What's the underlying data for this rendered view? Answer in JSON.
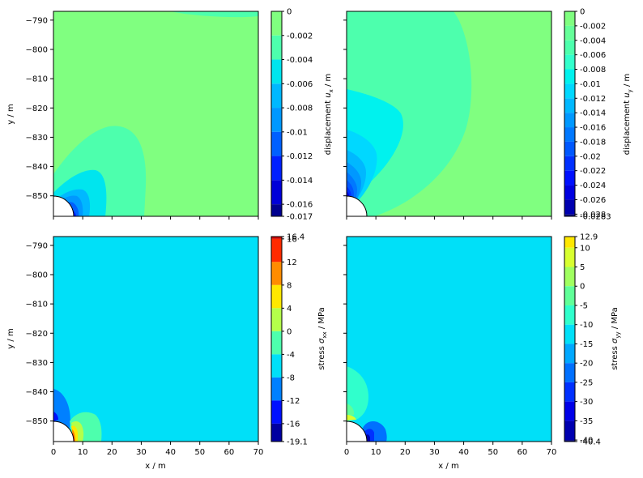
{
  "chart_data": [
    {
      "type": "contour",
      "panel": "top-left",
      "xlabel": "",
      "ylabel": "y / m",
      "xlim": [
        0,
        70
      ],
      "ylim": [
        -857,
        -787
      ],
      "x_ticks": [
        "0",
        "10",
        "20",
        "30",
        "40",
        "50",
        "60",
        "70"
      ],
      "y_ticks": [
        "−790",
        "−800",
        "−810",
        "−820",
        "−830",
        "−840",
        "−850"
      ],
      "y_tick_values": [
        -790,
        -800,
        -810,
        -820,
        -830,
        -840,
        -850
      ],
      "show_x_tick_labels": false,
      "show_y_tick_labels": true,
      "colorbar": {
        "label_text": "displacement ",
        "label_symbol": "u",
        "label_sub": "x",
        "label_unit": " / m",
        "min": -0.017,
        "max": 0,
        "ticks": [
          "0",
          "-0.002",
          "-0.004",
          "-0.006",
          "-0.008",
          "-0.01",
          "-0.012",
          "-0.014",
          "-0.016",
          "-0.017"
        ],
        "tick_values": [
          0,
          -0.002,
          -0.004,
          -0.006,
          -0.008,
          -0.01,
          -0.012,
          -0.014,
          -0.016,
          -0.017
        ],
        "levels": [
          {
            "from": -0.002,
            "to": 0,
            "color": "#80ff80"
          },
          {
            "from": -0.004,
            "to": -0.002,
            "color": "#4dffad"
          },
          {
            "from": -0.006,
            "to": -0.004,
            "color": "#00e5ee"
          },
          {
            "from": -0.008,
            "to": -0.006,
            "color": "#00b8ff"
          },
          {
            "from": -0.01,
            "to": -0.008,
            "color": "#0098ff"
          },
          {
            "from": -0.012,
            "to": -0.01,
            "color": "#0060ff"
          },
          {
            "from": -0.014,
            "to": -0.012,
            "color": "#0020ff"
          },
          {
            "from": -0.016,
            "to": -0.014,
            "color": "#0000d8"
          },
          {
            "from": -0.017,
            "to": -0.016,
            "color": "#00008f"
          }
        ]
      }
    },
    {
      "type": "contour",
      "panel": "top-right",
      "xlabel": "",
      "ylabel": "",
      "xlim": [
        0,
        70
      ],
      "ylim": [
        -857,
        -787
      ],
      "x_ticks": [
        "0",
        "10",
        "20",
        "30",
        "40",
        "50",
        "60",
        "70"
      ],
      "y_ticks": [],
      "y_tick_values": [
        -790,
        -800,
        -810,
        -820,
        -830,
        -840,
        -850
      ],
      "show_x_tick_labels": false,
      "show_y_tick_labels": false,
      "colorbar": {
        "label_text": "displacement ",
        "label_symbol": "u",
        "label_sub": "y",
        "label_unit": " / m",
        "min": -0.0283,
        "max": 0,
        "ticks": [
          "0",
          "-0.002",
          "-0.004",
          "-0.006",
          "-0.008",
          "-0.01",
          "-0.012",
          "-0.014",
          "-0.016",
          "-0.018",
          "-0.02",
          "-0.022",
          "-0.024",
          "-0.026",
          "-0.028",
          "-0.0283"
        ],
        "tick_values": [
          0,
          -0.002,
          -0.004,
          -0.006,
          -0.008,
          -0.01,
          -0.012,
          -0.014,
          -0.016,
          -0.018,
          -0.02,
          -0.022,
          -0.024,
          -0.026,
          -0.028,
          -0.0283
        ],
        "levels": [
          {
            "from": -0.002,
            "to": 0,
            "color": "#80ff80"
          },
          {
            "from": -0.004,
            "to": -0.002,
            "color": "#66ff99"
          },
          {
            "from": -0.006,
            "to": -0.004,
            "color": "#4dffad"
          },
          {
            "from": -0.008,
            "to": -0.006,
            "color": "#33ffcc"
          },
          {
            "from": -0.01,
            "to": -0.008,
            "color": "#00f2ee"
          },
          {
            "from": -0.012,
            "to": -0.01,
            "color": "#00d8ff"
          },
          {
            "from": -0.014,
            "to": -0.012,
            "color": "#00b8ff"
          },
          {
            "from": -0.016,
            "to": -0.014,
            "color": "#0098ff"
          },
          {
            "from": -0.018,
            "to": -0.016,
            "color": "#0078ff"
          },
          {
            "from": -0.02,
            "to": -0.018,
            "color": "#0058ff"
          },
          {
            "from": -0.022,
            "to": -0.02,
            "color": "#0030ff"
          },
          {
            "from": -0.024,
            "to": -0.022,
            "color": "#0010ff"
          },
          {
            "from": -0.026,
            "to": -0.024,
            "color": "#0000e0"
          },
          {
            "from": -0.028,
            "to": -0.026,
            "color": "#0000b0"
          },
          {
            "from": -0.0283,
            "to": -0.028,
            "color": "#000080"
          }
        ]
      }
    },
    {
      "type": "contour",
      "panel": "bottom-left",
      "xlabel": "x / m",
      "ylabel": "y / m",
      "xlim": [
        0,
        70
      ],
      "ylim": [
        -857,
        -787
      ],
      "x_ticks": [
        "0",
        "10",
        "20",
        "30",
        "40",
        "50",
        "60",
        "70"
      ],
      "y_ticks": [
        "−790",
        "−800",
        "−810",
        "−820",
        "−830",
        "−840",
        "−850"
      ],
      "y_tick_values": [
        -790,
        -800,
        -810,
        -820,
        -830,
        -840,
        -850
      ],
      "show_x_tick_labels": true,
      "show_y_tick_labels": true,
      "colorbar": {
        "label_text": "stress ",
        "label_symbol": "σ",
        "label_sub": "xx",
        "label_unit": " / MPa",
        "min": -19.1,
        "max": 16.4,
        "ticks": [
          "16.4",
          "16",
          "12",
          "8",
          "4",
          "0",
          "-4",
          "-8",
          "-12",
          "-16",
          "-19.1"
        ],
        "tick_values": [
          16.4,
          16,
          12,
          8,
          4,
          0,
          -4,
          -8,
          -12,
          -16,
          -19.1
        ],
        "levels": [
          {
            "from": 16,
            "to": 16.4,
            "color": "#c80000"
          },
          {
            "from": 12,
            "to": 16,
            "color": "#ff2a00"
          },
          {
            "from": 8,
            "to": 12,
            "color": "#ff8c00"
          },
          {
            "from": 4,
            "to": 8,
            "color": "#ffe800"
          },
          {
            "from": 0,
            "to": 4,
            "color": "#b4ff4a"
          },
          {
            "from": -4,
            "to": 0,
            "color": "#4dffad"
          },
          {
            "from": -8,
            "to": -4,
            "color": "#00e0f8"
          },
          {
            "from": -12,
            "to": -8,
            "color": "#0080ff"
          },
          {
            "from": -16,
            "to": -12,
            "color": "#0010ff"
          },
          {
            "from": -19.1,
            "to": -16,
            "color": "#0000a0"
          }
        ]
      }
    },
    {
      "type": "contour",
      "panel": "bottom-right",
      "xlabel": "x / m",
      "ylabel": "",
      "xlim": [
        0,
        70
      ],
      "ylim": [
        -857,
        -787
      ],
      "x_ticks": [
        "0",
        "10",
        "20",
        "30",
        "40",
        "50",
        "60",
        "70"
      ],
      "y_ticks": [],
      "y_tick_values": [
        -790,
        -800,
        -810,
        -820,
        -830,
        -840,
        -850
      ],
      "show_x_tick_labels": true,
      "show_y_tick_labels": false,
      "colorbar": {
        "label_text": "stress ",
        "label_symbol": "σ",
        "label_sub": "yy",
        "label_unit": " / MPa",
        "min": -40.4,
        "max": 12.9,
        "ticks": [
          "12.9",
          "10",
          "5",
          "0",
          "-5",
          "-10",
          "-15",
          "-20",
          "-25",
          "-30",
          "-35",
          "-40",
          "-40.4"
        ],
        "tick_values": [
          12.9,
          10,
          5,
          0,
          -5,
          -10,
          -15,
          -20,
          -25,
          -30,
          -35,
          -40,
          -40.4
        ],
        "levels": [
          {
            "from": 10,
            "to": 12.9,
            "color": "#ffe800"
          },
          {
            "from": 5,
            "to": 10,
            "color": "#d8ff30"
          },
          {
            "from": 0,
            "to": 5,
            "color": "#a0ff60"
          },
          {
            "from": -5,
            "to": 0,
            "color": "#60ff98"
          },
          {
            "from": -10,
            "to": -5,
            "color": "#30ffcc"
          },
          {
            "from": -15,
            "to": -10,
            "color": "#00e0f8"
          },
          {
            "from": -20,
            "to": -15,
            "color": "#00a8ff"
          },
          {
            "from": -25,
            "to": -20,
            "color": "#0070ff"
          },
          {
            "from": -30,
            "to": -25,
            "color": "#0030ff"
          },
          {
            "from": -35,
            "to": -30,
            "color": "#0000e8"
          },
          {
            "from": -40,
            "to": -35,
            "color": "#0000b0"
          },
          {
            "from": -40.4,
            "to": -40,
            "color": "#000080"
          }
        ]
      }
    }
  ]
}
